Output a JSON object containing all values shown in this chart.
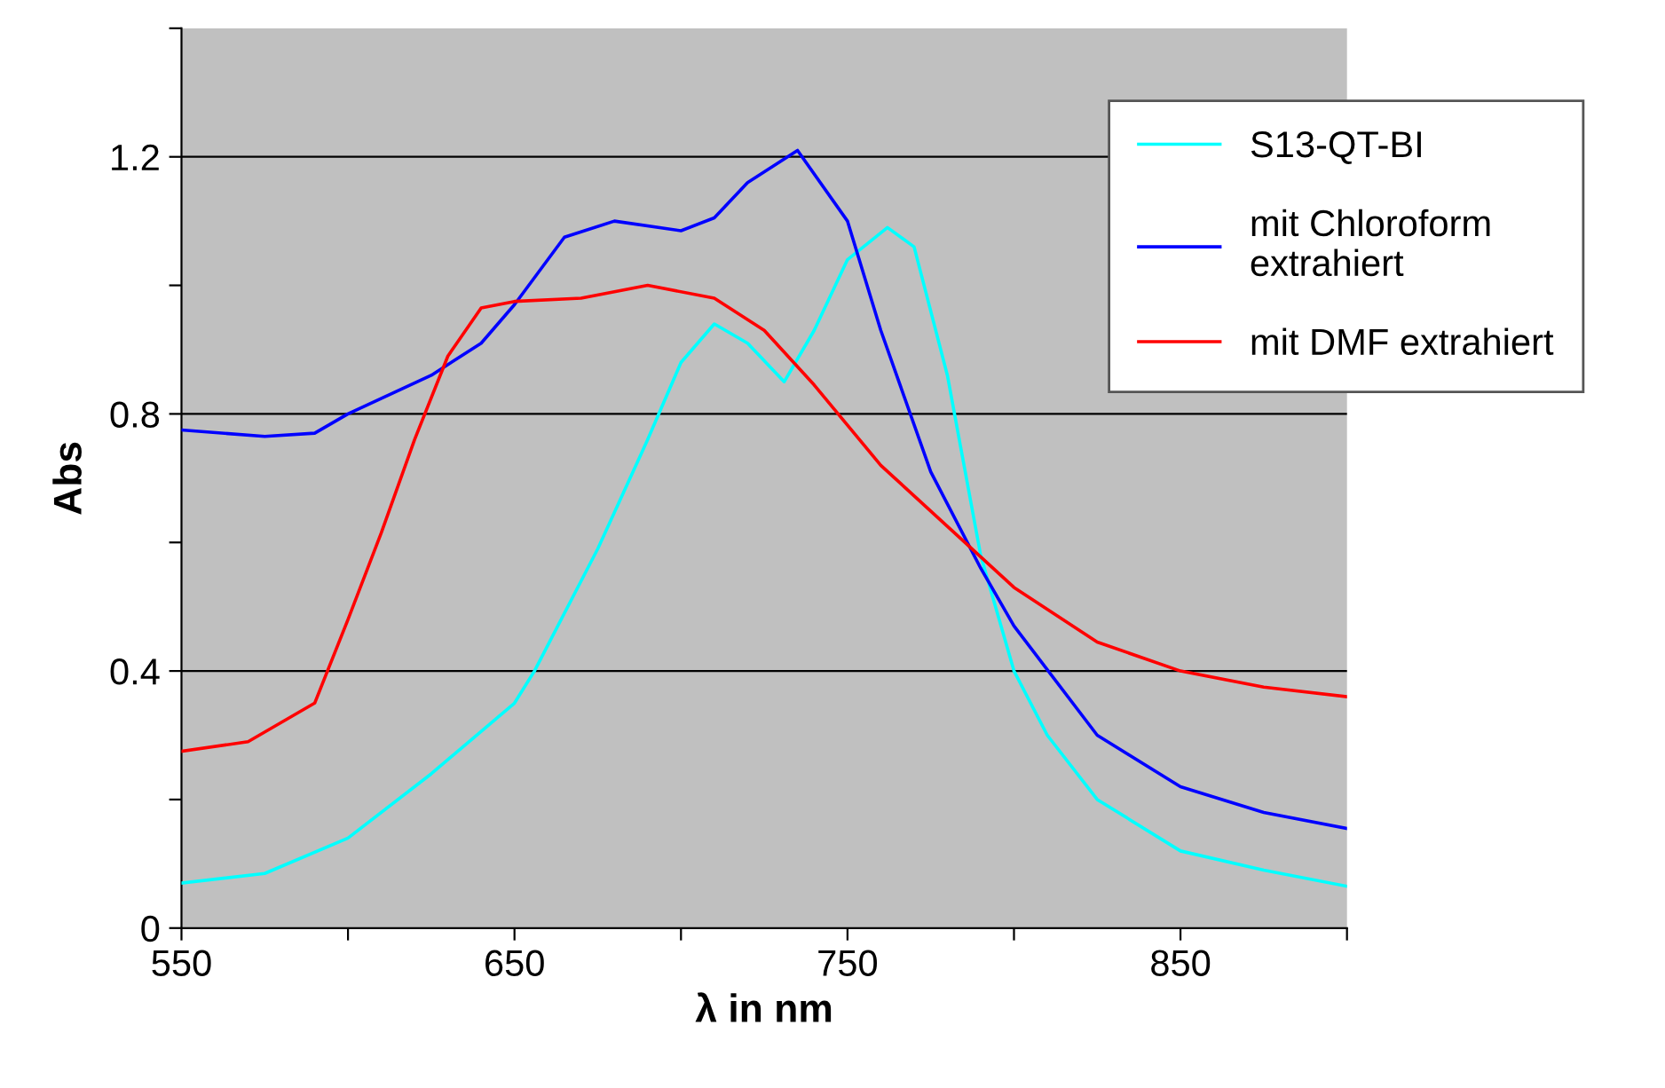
{
  "chart_data": {
    "type": "line",
    "xlabel": "λ in nm",
    "ylabel": "Abs",
    "xlim": [
      550,
      900
    ],
    "xticks": [
      550,
      {
        "value": 600,
        "label": null
      },
      650,
      {
        "value": 700,
        "label": null
      },
      750,
      {
        "value": 800,
        "label": null
      },
      850,
      {
        "value": 900,
        "label": null
      }
    ],
    "ylim": [
      0,
      1.4
    ],
    "yticks": [
      0,
      {
        "value": 0.2,
        "label": null
      },
      0.4,
      {
        "value": 0.6,
        "label": null
      },
      0.8,
      {
        "value": 1.0,
        "label": null
      },
      1.2,
      {
        "value": 1.4,
        "label": null
      }
    ],
    "grid": "y",
    "legend": "top right",
    "marker": "none",
    "line_style": "solid",
    "series": [
      {
        "name": "S13-QT-BI",
        "color": "#00ffff",
        "x": [
          550,
          575,
          600,
          625,
          650,
          656,
          675,
          690,
          700,
          710,
          720,
          731,
          740,
          750,
          762,
          770,
          780,
          790,
          800,
          810,
          825,
          850,
          875,
          900
        ],
        "values": [
          0.07,
          0.085,
          0.14,
          0.24,
          0.35,
          0.4,
          0.59,
          0.76,
          0.88,
          0.94,
          0.91,
          0.85,
          0.93,
          1.04,
          1.09,
          1.06,
          0.86,
          0.58,
          0.4,
          0.3,
          0.2,
          0.12,
          0.09,
          0.065
        ]
      },
      {
        "name": "mit Chloroform\nextrahiert",
        "color": "#0000ff",
        "x": [
          550,
          575,
          590,
          600,
          625,
          640,
          650,
          665,
          680,
          700,
          710,
          720,
          735,
          750,
          760,
          775,
          790,
          800,
          825,
          850,
          875,
          900
        ],
        "values": [
          0.775,
          0.765,
          0.77,
          0.8,
          0.86,
          0.91,
          0.97,
          1.075,
          1.1,
          1.085,
          1.105,
          1.16,
          1.21,
          1.1,
          0.93,
          0.71,
          0.56,
          0.47,
          0.3,
          0.22,
          0.18,
          0.155
        ]
      },
      {
        "name": "mit DMF extrahiert",
        "color": "#ff0000",
        "x": [
          550,
          570,
          590,
          600,
          610,
          620,
          630,
          640,
          650,
          670,
          690,
          710,
          725,
          740,
          760,
          780,
          800,
          825,
          850,
          875,
          900
        ],
        "values": [
          0.275,
          0.29,
          0.35,
          0.48,
          0.615,
          0.76,
          0.89,
          0.965,
          0.975,
          0.98,
          1.0,
          0.98,
          0.93,
          0.845,
          0.72,
          0.625,
          0.53,
          0.445,
          0.4,
          0.375,
          0.36
        ]
      }
    ]
  }
}
